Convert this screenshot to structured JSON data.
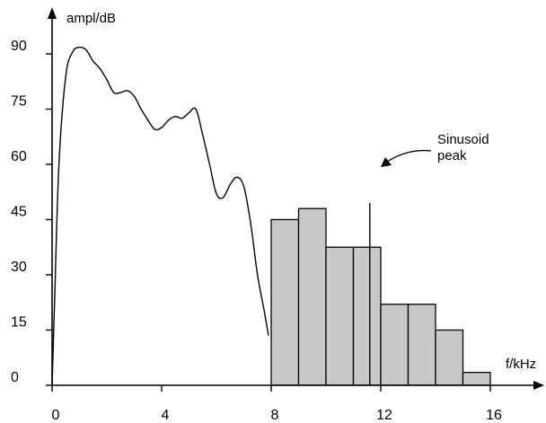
{
  "chart_data": {
    "type": "bar",
    "xlabel": "f/kHz",
    "ylabel": "ampl/dB",
    "xlim": [
      0,
      16.5
    ],
    "ylim": [
      0,
      97
    ],
    "x_ticks": [
      0,
      4,
      8,
      12,
      16
    ],
    "y_ticks": [
      0,
      15,
      30,
      45,
      60,
      75,
      90
    ],
    "grid": false,
    "legend": "none",
    "bars": {
      "bin_width_khz": 1,
      "x_start": [
        8,
        9,
        10,
        11,
        12,
        13,
        14,
        15
      ],
      "values": [
        45,
        48,
        37.5,
        37.5,
        22,
        22,
        15,
        3.5
      ],
      "fill": "#c8c8c8"
    },
    "curve": {
      "x": [
        0,
        0.1,
        0.25,
        0.5,
        0.75,
        1.0,
        1.25,
        1.5,
        1.75,
        2.0,
        2.25,
        2.5,
        2.75,
        3.0,
        3.25,
        3.5,
        3.75,
        4.0,
        4.25,
        4.5,
        4.75,
        5.0,
        5.25,
        5.5,
        5.75,
        6.0,
        6.25,
        6.5,
        6.75,
        7.0,
        7.25,
        7.5,
        7.75,
        7.9
      ],
      "y": [
        0,
        25,
        60,
        84,
        90.5,
        91.8,
        91,
        88,
        86,
        83,
        79.5,
        79.5,
        80,
        78.5,
        75,
        72,
        69.5,
        70,
        72,
        73,
        72.5,
        74,
        75,
        68,
        60,
        52,
        51,
        54.5,
        56.5,
        54,
        44,
        30,
        20,
        13.5
      ],
      "color": "#000000"
    },
    "sinusoid": {
      "x": 11.6,
      "y": 49.5
    },
    "annotation": {
      "text_lines": [
        "Sinusoid",
        "peak"
      ]
    }
  }
}
